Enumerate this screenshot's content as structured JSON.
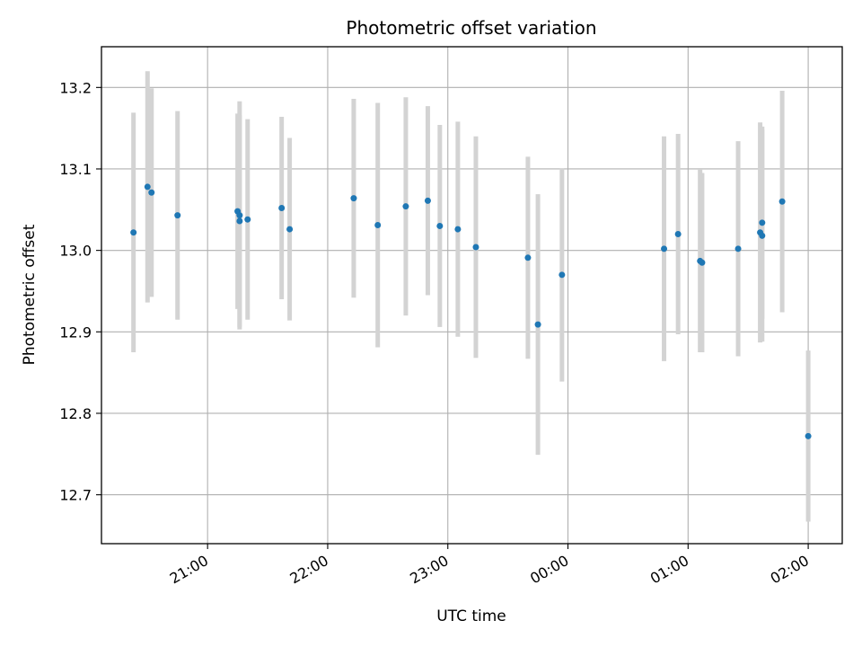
{
  "chart_data": {
    "type": "scatter",
    "title": "Photometric offset variation",
    "xlabel": "UTC time",
    "ylabel": "Photometric offset",
    "x_unit": "UTC time (HH:MM)",
    "xlim": [
      "20:07",
      "02:17"
    ],
    "ylim": [
      12.64,
      13.25
    ],
    "x_ticks": [
      "21:00",
      "22:00",
      "23:00",
      "00:00",
      "01:00",
      "02:00"
    ],
    "y_ticks": [
      "12.7",
      "12.8",
      "12.9",
      "13.0",
      "13.1",
      "13.2"
    ],
    "grid": true,
    "point_color": "#1f77b4",
    "errorbar_color": "#d3d3d3",
    "points": [
      {
        "t": "20:23",
        "y": 13.022,
        "err": 0.147
      },
      {
        "t": "20:30",
        "y": 13.078,
        "err": 0.142
      },
      {
        "t": "20:32",
        "y": 13.071,
        "err": 0.128
      },
      {
        "t": "20:45",
        "y": 13.043,
        "err": 0.128
      },
      {
        "t": "21:15",
        "y": 13.048,
        "err": 0.12
      },
      {
        "t": "21:16",
        "y": 13.043,
        "err": 0.14
      },
      {
        "t": "21:16",
        "y": 13.036,
        "err": 0.13
      },
      {
        "t": "21:20",
        "y": 13.038,
        "err": 0.123
      },
      {
        "t": "21:37",
        "y": 13.052,
        "err": 0.112
      },
      {
        "t": "21:41",
        "y": 13.026,
        "err": 0.112
      },
      {
        "t": "22:13",
        "y": 13.064,
        "err": 0.122
      },
      {
        "t": "22:25",
        "y": 13.031,
        "err": 0.15
      },
      {
        "t": "22:39",
        "y": 13.054,
        "err": 0.134
      },
      {
        "t": "22:50",
        "y": 13.061,
        "err": 0.116
      },
      {
        "t": "22:56",
        "y": 13.03,
        "err": 0.124
      },
      {
        "t": "23:05",
        "y": 13.026,
        "err": 0.132
      },
      {
        "t": "23:14",
        "y": 13.004,
        "err": 0.136
      },
      {
        "t": "23:40",
        "y": 12.991,
        "err": 0.124
      },
      {
        "t": "23:45",
        "y": 12.909,
        "err": 0.16
      },
      {
        "t": "23:57",
        "y": 12.97,
        "err": 0.131
      },
      {
        "t": "00:48",
        "y": 13.002,
        "err": 0.138
      },
      {
        "t": "00:55",
        "y": 13.02,
        "err": 0.123
      },
      {
        "t": "01:06",
        "y": 12.987,
        "err": 0.112
      },
      {
        "t": "01:07",
        "y": 12.985,
        "err": 0.11
      },
      {
        "t": "01:25",
        "y": 13.002,
        "err": 0.132
      },
      {
        "t": "01:36",
        "y": 13.022,
        "err": 0.135
      },
      {
        "t": "01:37",
        "y": 13.018,
        "err": 0.13
      },
      {
        "t": "01:37",
        "y": 13.034,
        "err": 0.118
      },
      {
        "t": "01:47",
        "y": 13.06,
        "err": 0.136
      },
      {
        "t": "02:00",
        "y": 12.772,
        "err": 0.105
      }
    ]
  }
}
